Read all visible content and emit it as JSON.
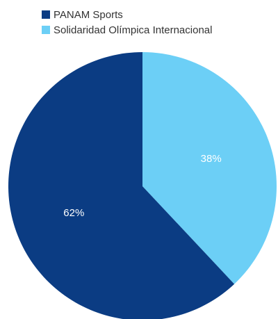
{
  "chart_data": {
    "type": "pie",
    "categories": [
      "PANAM Sports",
      "Solidaridad Olímpica Internacional"
    ],
    "values": [
      62,
      38
    ],
    "labels": [
      "62%",
      "38%"
    ],
    "colors": [
      "#0b3c83",
      "#6ccff6"
    ],
    "legend_position": "top"
  }
}
